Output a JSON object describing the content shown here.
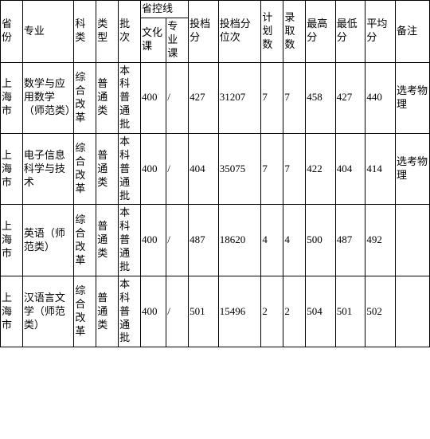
{
  "headers": {
    "province": "省份",
    "major": "专业",
    "subject": "科类",
    "type": "类型",
    "batch": "批次",
    "control_line": "省控线",
    "culture": "文化课",
    "pro": "专业课",
    "toudang": "投档分",
    "rank": "投档分位次",
    "plan": "计划数",
    "admit": "录取数",
    "max": "最高分",
    "min": "最低分",
    "avg": "平均分",
    "note": "备注"
  },
  "rows": [
    {
      "province": "上海市",
      "major": "数学与应用数学（师范类）",
      "subject": "综合改革",
      "type": "普通类",
      "batch": "本科普通批",
      "culture": "400",
      "pro": "/",
      "toudang": "427",
      "rank": "31207",
      "plan": "7",
      "admit": "7",
      "max": "458",
      "min": "427",
      "avg": "440",
      "note": "选考物理"
    },
    {
      "province": "上海市",
      "major": "电子信息科学与技术",
      "subject": "综合改革",
      "type": "普通类",
      "batch": "本科普通批",
      "culture": "400",
      "pro": "/",
      "toudang": "404",
      "rank": "35075",
      "plan": "7",
      "admit": "7",
      "max": "422",
      "min": "404",
      "avg": "414",
      "note": "选考物理"
    },
    {
      "province": "上海市",
      "major": "英语（师范类）",
      "subject": "综合改革",
      "type": "普通类",
      "batch": "本科普通批",
      "culture": "400",
      "pro": "/",
      "toudang": "487",
      "rank": "18620",
      "plan": "4",
      "admit": "4",
      "max": "500",
      "min": "487",
      "avg": "492",
      "note": ""
    },
    {
      "province": "上海市",
      "major": "汉语言文学（师范类）",
      "subject": "综合改革",
      "type": "普通类",
      "batch": "本科普通批",
      "culture": "400",
      "pro": "/",
      "toudang": "501",
      "rank": "15496",
      "plan": "2",
      "admit": "2",
      "max": "504",
      "min": "501",
      "avg": "502",
      "note": ""
    }
  ]
}
